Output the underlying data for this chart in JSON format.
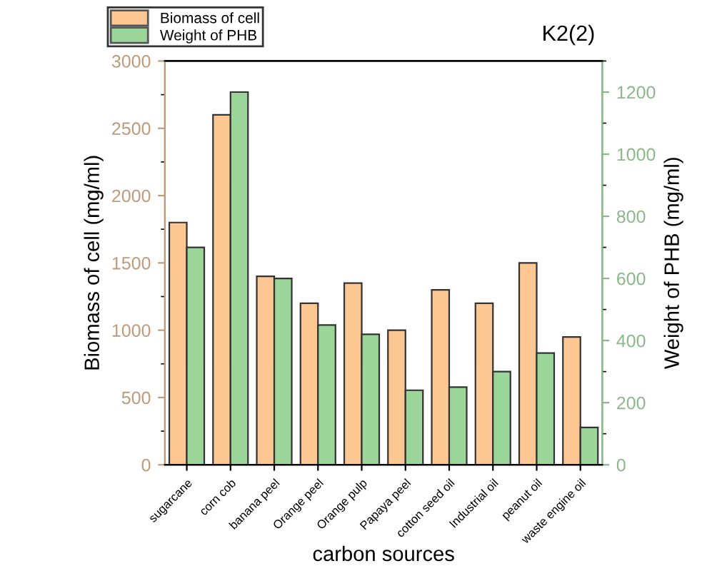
{
  "chart_data": {
    "type": "bar",
    "title": "K2(2)",
    "xlabel": "carbon sources",
    "ylabel": "Biomass of cell (mg/ml)",
    "y2label": "Weight of PHB (mg/ml)",
    "categories": [
      "sugarcane",
      "corn cob",
      "banana peel",
      "Orange peel",
      "Orange pulp",
      "Papaya peel",
      "cotton seed oil",
      "Industrial oil",
      "peanut oil",
      "waste engine oil"
    ],
    "series": [
      {
        "name": "Biomass of cell",
        "color": "#fdc794",
        "values": [
          1800,
          2600,
          1400,
          1200,
          1350,
          1000,
          1300,
          1200,
          1500,
          950
        ]
      },
      {
        "name": "Weight of PHB",
        "color": "#9bd59a",
        "axis": "y2",
        "values": [
          700,
          1200,
          600,
          450,
          420,
          240,
          250,
          300,
          360,
          120
        ]
      }
    ],
    "ylim": [
      0,
      3000
    ],
    "yticks": [
      0,
      500,
      1000,
      1500,
      2000,
      2500,
      3000
    ],
    "y2lim": [
      0,
      1300
    ],
    "y2ticks": [
      0,
      200,
      400,
      600,
      800,
      1000,
      1200
    ],
    "grid": false,
    "legend": "top left"
  }
}
